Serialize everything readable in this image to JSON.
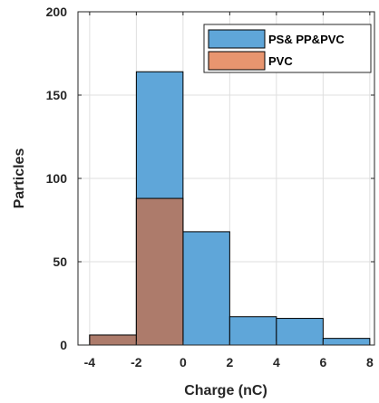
{
  "chart_data": {
    "type": "bar",
    "xlabel": "Charge (nC)",
    "ylabel": "Particles",
    "xlim": [
      -4.5,
      8.2
    ],
    "ylim": [
      0,
      200
    ],
    "xticks": [
      -4,
      -2,
      0,
      2,
      4,
      6,
      8
    ],
    "yticks": [
      0,
      50,
      100,
      150,
      200
    ],
    "grid": true,
    "legend_position": "top-right",
    "bin_edges": [
      -4,
      -2,
      0,
      2,
      4,
      6,
      8
    ],
    "series": [
      {
        "name": "PS& PP&PVC",
        "color": "#5fa6d9",
        "values": [
          6,
          164,
          68,
          17,
          16,
          4
        ]
      },
      {
        "name": "PVC",
        "color": "#ad7b6b",
        "values": [
          6,
          88,
          0,
          0,
          0,
          0
        ]
      }
    ],
    "legend_colors": [
      "#5fa6d9",
      "#e8956f"
    ]
  }
}
